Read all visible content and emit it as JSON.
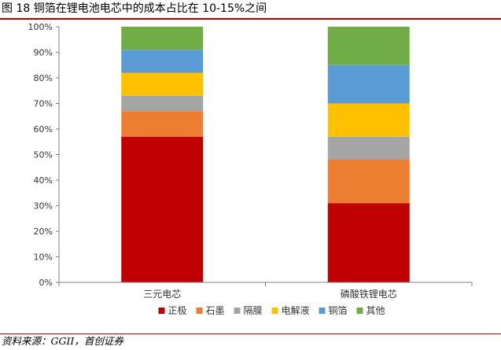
{
  "header": {
    "title": "图 18 铜箔在锂电池电芯中的成本占比在 10-15%之间"
  },
  "footer": {
    "source": "资料来源：GGII，首创证券"
  },
  "chart_data": {
    "type": "bar",
    "stacked": true,
    "categories": [
      "三元电芯",
      "磷酸铁锂电芯"
    ],
    "ylim": [
      0,
      100
    ],
    "yticks": [
      "0%",
      "10%",
      "20%",
      "30%",
      "40%",
      "50%",
      "60%",
      "70%",
      "80%",
      "90%",
      "100%"
    ],
    "grid": false,
    "legend_position": "bottom",
    "series": [
      {
        "name": "正极",
        "color": "#C00000",
        "values": [
          57,
          31
        ]
      },
      {
        "name": "石墨",
        "color": "#ED7D31",
        "values": [
          10,
          17
        ]
      },
      {
        "name": "隔膜",
        "color": "#A5A5A5",
        "values": [
          6,
          9
        ]
      },
      {
        "name": "电解液",
        "color": "#FFC000",
        "values": [
          9,
          13
        ]
      },
      {
        "name": "铜箔",
        "color": "#5B9BD5",
        "values": [
          9,
          15
        ]
      },
      {
        "name": "其他",
        "color": "#70AD47",
        "values": [
          9,
          15
        ]
      }
    ]
  }
}
